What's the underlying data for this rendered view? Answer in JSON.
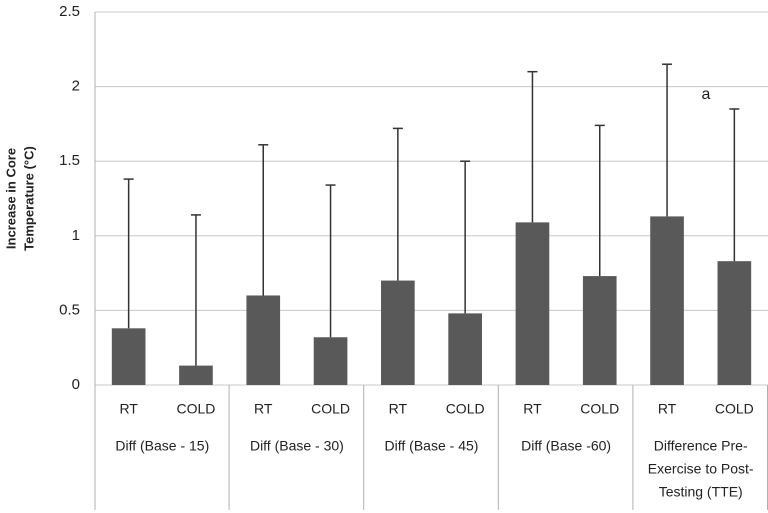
{
  "chart_data": {
    "type": "bar",
    "ylabel": [
      "Increase in Core",
      "Temperature (°C)"
    ],
    "categories": [
      "RT",
      "COLD",
      "RT",
      "COLD",
      "RT",
      "COLD",
      "RT",
      "COLD",
      "RT",
      "COLD"
    ],
    "groups": [
      {
        "label": [
          "Diff (Base - 15)"
        ],
        "size": 2
      },
      {
        "label": [
          "Diff (Base - 30)"
        ],
        "size": 2
      },
      {
        "label": [
          "Diff (Base - 45)"
        ],
        "size": 2
      },
      {
        "label": [
          "Diff (Base -60)"
        ],
        "size": 2
      },
      {
        "label": [
          "Difference Pre-",
          "Exercise to Post-",
          "Testing (TTE)"
        ],
        "size": 2
      }
    ],
    "values": [
      0.38,
      0.13,
      0.6,
      0.32,
      0.7,
      0.48,
      1.09,
      0.73,
      1.13,
      0.83
    ],
    "errors": [
      1.0,
      1.01,
      1.01,
      1.02,
      1.02,
      1.02,
      1.01,
      1.01,
      1.02,
      1.02
    ],
    "color": "#595959",
    "ylim": [
      0,
      2.5
    ],
    "yticks": [
      0,
      0.5,
      1,
      1.5,
      2,
      2.5
    ],
    "grid": true,
    "annotation": "a"
  }
}
